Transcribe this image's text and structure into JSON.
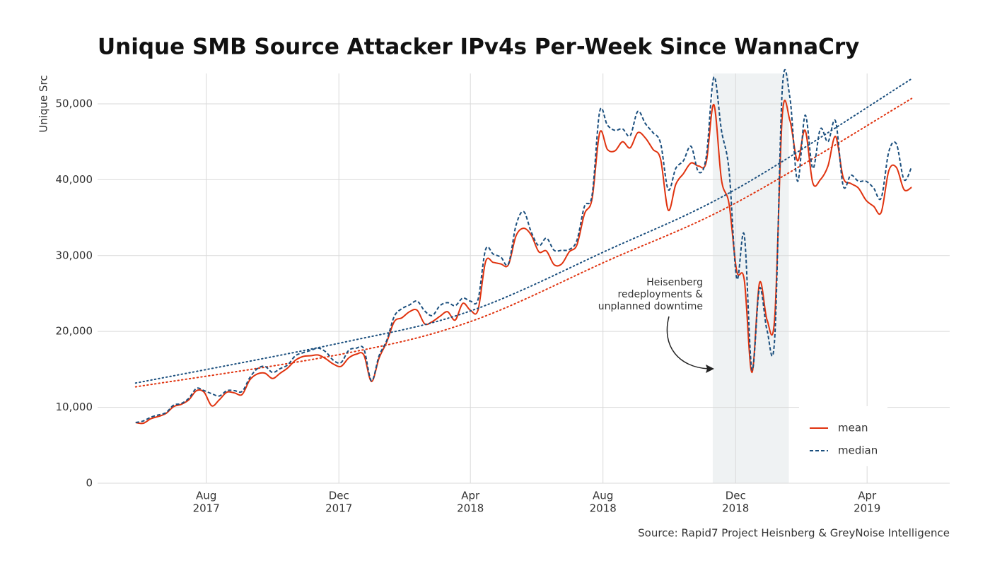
{
  "chart_data": {
    "type": "line",
    "title": "Unique SMB Source Attacker IPv4s Per-Week Since WannaCry",
    "y_label": "Unique Src",
    "source": "Source: Rapid7 Project Heisnberg & GreyNoise Intelligence",
    "annotation": [
      "Heisenberg",
      "redeployments &",
      "unplanned downtime"
    ],
    "highlight": {
      "from": "2018-11-10",
      "to": "2019-01-19",
      "color": "#eff2f3"
    },
    "x": [
      "2017-05-28",
      "2017-06-04",
      "2017-06-11",
      "2017-06-18",
      "2017-06-25",
      "2017-07-02",
      "2017-07-09",
      "2017-07-16",
      "2017-07-23",
      "2017-07-30",
      "2017-08-06",
      "2017-08-13",
      "2017-08-20",
      "2017-08-27",
      "2017-09-03",
      "2017-09-10",
      "2017-09-17",
      "2017-09-24",
      "2017-10-01",
      "2017-10-08",
      "2017-10-15",
      "2017-10-22",
      "2017-10-29",
      "2017-11-05",
      "2017-11-12",
      "2017-11-19",
      "2017-11-26",
      "2017-12-03",
      "2017-12-10",
      "2017-12-17",
      "2017-12-24",
      "2017-12-31",
      "2018-01-07",
      "2018-01-14",
      "2018-01-21",
      "2018-01-28",
      "2018-02-04",
      "2018-02-11",
      "2018-02-18",
      "2018-02-25",
      "2018-03-04",
      "2018-03-11",
      "2018-03-18",
      "2018-03-25",
      "2018-04-01",
      "2018-04-08",
      "2018-04-15",
      "2018-04-22",
      "2018-04-29",
      "2018-05-06",
      "2018-05-13",
      "2018-05-20",
      "2018-05-27",
      "2018-06-03",
      "2018-06-10",
      "2018-06-17",
      "2018-06-24",
      "2018-07-01",
      "2018-07-08",
      "2018-07-15",
      "2018-07-22",
      "2018-07-29",
      "2018-08-05",
      "2018-08-12",
      "2018-08-19",
      "2018-08-26",
      "2018-09-02",
      "2018-09-09",
      "2018-09-16",
      "2018-09-23",
      "2018-09-30",
      "2018-10-07",
      "2018-10-14",
      "2018-10-21",
      "2018-10-28",
      "2018-11-04",
      "2018-11-11",
      "2018-11-18",
      "2018-11-25",
      "2018-12-02",
      "2018-12-09",
      "2018-12-16",
      "2018-12-23",
      "2018-12-30",
      "2019-01-06",
      "2019-01-13",
      "2019-01-20",
      "2019-01-27",
      "2019-02-03",
      "2019-02-10",
      "2019-02-17",
      "2019-02-24",
      "2019-03-03",
      "2019-03-10",
      "2019-03-17",
      "2019-03-24",
      "2019-03-31",
      "2019-04-07",
      "2019-04-14",
      "2019-04-21",
      "2019-04-28",
      "2019-05-05",
      "2019-05-12"
    ],
    "series": [
      {
        "name": "mean",
        "color": "#e0330f",
        "dash": "solid",
        "values": [
          8000,
          7900,
          8500,
          8800,
          9200,
          10100,
          10400,
          11000,
          12200,
          12000,
          10200,
          11000,
          12000,
          11900,
          11700,
          13600,
          14400,
          14500,
          13800,
          14500,
          15200,
          16200,
          16700,
          16800,
          16900,
          16400,
          15700,
          15400,
          16500,
          17000,
          16900,
          13400,
          16500,
          18600,
          21300,
          21800,
          22600,
          22800,
          21000,
          21300,
          22000,
          22600,
          21500,
          23700,
          22800,
          22800,
          29200,
          29100,
          28900,
          28800,
          32600,
          33600,
          32700,
          30500,
          30600,
          28800,
          28900,
          30500,
          31400,
          35500,
          37500,
          46200,
          44000,
          43800,
          45000,
          44200,
          46200,
          45500,
          44000,
          42700,
          36000,
          39400,
          40800,
          42200,
          41800,
          42300,
          49900,
          40000,
          36800,
          28000,
          26800,
          14600,
          26400,
          21500,
          21800,
          48500,
          47800,
          42500,
          46500,
          39600,
          40000,
          41800,
          45700,
          40300,
          39500,
          38900,
          37300,
          36500,
          35700,
          41200,
          41600,
          38700,
          39000
        ],
        "trend": {
          "x": [
            "2017-05-28",
            "2017-12-03",
            "2018-04-01",
            "2018-08-05",
            "2018-12-02",
            "2019-05-12"
          ],
          "values": [
            12700,
            17000,
            21300,
            29300,
            37000,
            50700
          ]
        }
      },
      {
        "name": "median",
        "color": "#1b4f7e",
        "dash": "dashed",
        "values": [
          8000,
          8200,
          8700,
          9000,
          9300,
          10300,
          10500,
          11200,
          12500,
          12200,
          11800,
          11500,
          12200,
          12200,
          12100,
          13900,
          15100,
          15400,
          14600,
          15100,
          15600,
          16800,
          17200,
          17500,
          17800,
          17300,
          16200,
          15900,
          17500,
          17800,
          17700,
          13500,
          16800,
          18800,
          22000,
          23000,
          23500,
          24000,
          22700,
          22100,
          23400,
          23800,
          23400,
          24400,
          24000,
          24200,
          30800,
          30200,
          29800,
          28900,
          34000,
          35800,
          33100,
          31300,
          32300,
          30700,
          30700,
          30800,
          32000,
          36500,
          38000,
          49000,
          47200,
          46500,
          46700,
          45800,
          49000,
          47400,
          46200,
          44800,
          38700,
          41500,
          42500,
          44400,
          41000,
          43000,
          53500,
          46500,
          41200,
          27000,
          32700,
          15000,
          25700,
          20100,
          19100,
          52000,
          50800,
          39800,
          48500,
          41500,
          46700,
          45000,
          47700,
          39200,
          40600,
          39800,
          39800,
          38900,
          37600,
          43700,
          44700,
          40000,
          41700
        ],
        "trend": {
          "x": [
            "2017-05-28",
            "2017-12-03",
            "2018-04-01",
            "2018-08-05",
            "2018-12-02",
            "2019-05-12"
          ],
          "values": [
            13200,
            18500,
            22700,
            30700,
            38800,
            53300
          ]
        }
      }
    ],
    "xlim": [
      "2017-04-23",
      "2019-06-16"
    ],
    "xticks": [
      {
        "value": "2017-08-01",
        "label": [
          "Aug",
          "2017"
        ]
      },
      {
        "value": "2017-12-01",
        "label": [
          "Dec",
          "2017"
        ]
      },
      {
        "value": "2018-04-01",
        "label": [
          "Apr",
          "2018"
        ]
      },
      {
        "value": "2018-08-01",
        "label": [
          "Aug",
          "2018"
        ]
      },
      {
        "value": "2018-12-01",
        "label": [
          "Dec",
          "2018"
        ]
      },
      {
        "value": "2019-04-01",
        "label": [
          "Apr",
          "2019"
        ]
      }
    ],
    "ylim": [
      0,
      54000
    ],
    "yticks": [
      0,
      {
        "value": 10000,
        "label": "10,000"
      },
      {
        "value": 20000,
        "label": "20,000"
      },
      {
        "value": 30000,
        "label": "30,000"
      },
      {
        "value": 40000,
        "label": "40,000"
      },
      {
        "value": 50000,
        "label": "50,000"
      }
    ],
    "grid": true,
    "legend": "bottom-right"
  }
}
